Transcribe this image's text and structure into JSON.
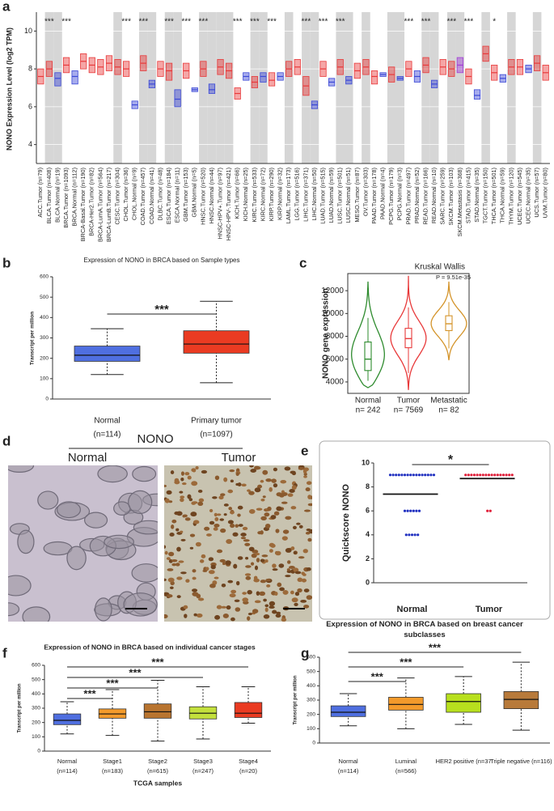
{
  "panel_labels": [
    "a",
    "b",
    "c",
    "d",
    "e",
    "f",
    "g"
  ],
  "chart_data": [
    {
      "type": "box",
      "ylabel": "NONO Expression Level (log2 TPM)",
      "categories": [
        "ACC.Tumor (n=79)",
        "BLCA.Tumor (n=408)",
        "BLCA.Normal (n=19)",
        "BRCA.Tumor (n=1093)",
        "BRCA.Normal (n=112)",
        "BRCA-Basal.Tumor (n=190)",
        "BRCA-Her2.Tumor (n=82)",
        "BRCA-LumA.Tumor (n=564)",
        "BRCA-LumB.Tumor (n=217)",
        "CESC.Tumor (n=304)",
        "CHOL.Tumor (n=36)",
        "CHOL.Normal (n=9)",
        "COAD.Tumor (n=457)",
        "COAD.Normal (n=41)",
        "DLBC.Tumor (n=48)",
        "ESCA.Tumor (n=184)",
        "ESCA.Normal (n=11)",
        "GBM.Tumor (n=153)",
        "GBM.Normal (n=5)",
        "HNSC.Tumor (n=520)",
        "HNSC.Normal (n=44)",
        "HNSC-HPV+.Tumor (n=97)",
        "HNSC-HPV-.Tumor (n=421)",
        "KICH.Tumor (n=66)",
        "KICH.Normal (n=25)",
        "KIRC.Tumor (n=533)",
        "KIRC.Normal (n=72)",
        "KIRP.Tumor (n=290)",
        "KIRP.Normal (n=32)",
        "LAML.Tumor (n=173)",
        "LGG.Tumor (n=516)",
        "LIHC.Tumor (n=371)",
        "LIHC.Normal (n=50)",
        "LUAD.Tumor (n=515)",
        "LUAD.Normal (n=59)",
        "LUSC.Tumor (n=501)",
        "LUSC.Normal (n=51)",
        "MESO.Tumor (n=87)",
        "OV.Tumor (n=303)",
        "PAAD.Tumor (n=178)",
        "PAAD.Normal (n=4)",
        "PCPG.Tumor (n=179)",
        "PCPG.Normal (n=3)",
        "PRAD.Tumor (n=497)",
        "PRAD.Normal (n=52)",
        "READ.Tumor (n=166)",
        "READ.Normal (n=10)",
        "SARC.Tumor (n=259)",
        "SKCM.Tumor (n=103)",
        "SKCM.Metastasis (n=368)",
        "STAD.Tumor (n=415)",
        "STAD.Normal (n=35)",
        "TGCT.Tumor (n=150)",
        "THCA.Tumor (n=501)",
        "THCA.Normal (n=59)",
        "THYM.Tumor (n=120)",
        "UCEC.Tumor (n=545)",
        "UCEC.Normal (n=35)",
        "UCS.Tumor (n=57)",
        "UVM.Tumor (n=80)"
      ],
      "median": [
        7.6,
        8.0,
        7.5,
        8.2,
        7.6,
        8.4,
        8.2,
        8.1,
        8.3,
        8.1,
        8.0,
        6.1,
        8.3,
        7.2,
        8.0,
        7.9,
        6.4,
        7.9,
        6.9,
        8.0,
        6.9,
        8.1,
        7.9,
        6.7,
        7.6,
        7.3,
        7.6,
        7.4,
        7.6,
        8.0,
        8.1,
        7.1,
        6.1,
        8.0,
        7.3,
        8.1,
        7.4,
        7.9,
        8.1,
        7.6,
        7.7,
        7.7,
        7.5,
        8.0,
        7.6,
        8.2,
        7.2,
        8.1,
        8.0,
        8.2,
        7.6,
        6.6,
        8.8,
        7.8,
        7.5,
        8.1,
        8.1,
        8.0,
        8.3,
        7.8
      ],
      "q1": [
        7.2,
        7.6,
        7.1,
        7.8,
        7.2,
        8.0,
        7.8,
        7.7,
        7.9,
        7.7,
        7.6,
        5.9,
        7.9,
        7.0,
        7.6,
        7.4,
        6.0,
        7.5,
        6.8,
        7.6,
        6.7,
        7.7,
        7.5,
        6.4,
        7.4,
        7.0,
        7.3,
        7.1,
        7.4,
        7.6,
        7.7,
        6.6,
        5.9,
        7.6,
        7.1,
        7.7,
        7.2,
        7.5,
        7.7,
        7.2,
        7.6,
        7.3,
        7.4,
        7.6,
        7.3,
        7.8,
        7.0,
        7.7,
        7.6,
        7.8,
        7.2,
        6.4,
        8.4,
        7.4,
        7.3,
        7.7,
        7.7,
        7.8,
        7.9,
        7.4
      ],
      "q3": [
        8.0,
        8.4,
        7.8,
        8.6,
        7.9,
        8.8,
        8.6,
        8.5,
        8.7,
        8.5,
        8.4,
        6.3,
        8.7,
        7.4,
        8.4,
        8.3,
        6.9,
        8.3,
        7.0,
        8.4,
        7.2,
        8.5,
        8.3,
        7.0,
        7.8,
        7.6,
        7.8,
        7.8,
        7.8,
        8.4,
        8.5,
        7.6,
        6.3,
        8.4,
        7.5,
        8.5,
        7.6,
        8.3,
        8.5,
        7.9,
        7.8,
        8.1,
        7.6,
        8.4,
        7.9,
        8.6,
        7.4,
        8.5,
        8.4,
        8.6,
        8.0,
        6.9,
        9.2,
        8.2,
        7.7,
        8.5,
        8.5,
        8.2,
        8.7,
        8.2
      ],
      "colors": [
        "#e8393a",
        "#e8393a",
        "#3b48d6",
        "#e8393a",
        "#3b48d6",
        "#e8393a",
        "#e8393a",
        "#e8393a",
        "#e8393a",
        "#e8393a",
        "#e8393a",
        "#3b48d6",
        "#e8393a",
        "#3b48d6",
        "#e8393a",
        "#e8393a",
        "#3b48d6",
        "#e8393a",
        "#3b48d6",
        "#e8393a",
        "#3b48d6",
        "#e8393a",
        "#e8393a",
        "#e8393a",
        "#3b48d6",
        "#e8393a",
        "#3b48d6",
        "#e8393a",
        "#3b48d6",
        "#e8393a",
        "#e8393a",
        "#e8393a",
        "#3b48d6",
        "#e8393a",
        "#3b48d6",
        "#e8393a",
        "#3b48d6",
        "#e8393a",
        "#e8393a",
        "#e8393a",
        "#3b48d6",
        "#e8393a",
        "#3b48d6",
        "#e8393a",
        "#3b48d6",
        "#e8393a",
        "#3b48d6",
        "#e8393a",
        "#e8393a",
        "#a23fd6",
        "#e8393a",
        "#3b48d6",
        "#e8393a",
        "#e8393a",
        "#3b48d6",
        "#e8393a",
        "#e8393a",
        "#3b48d6",
        "#e8393a",
        "#e8393a"
      ],
      "significance": [
        null,
        "***",
        null,
        "***",
        null,
        null,
        null,
        null,
        null,
        null,
        "***",
        null,
        "***",
        null,
        null,
        "***",
        null,
        "***",
        null,
        "***",
        null,
        null,
        null,
        "***",
        null,
        "***",
        null,
        "***",
        null,
        null,
        null,
        "***",
        null,
        "***",
        null,
        "***",
        null,
        null,
        null,
        null,
        null,
        null,
        null,
        "***",
        null,
        "***",
        null,
        null,
        "***",
        null,
        "***",
        null,
        null,
        "*",
        null,
        null,
        null,
        null,
        null,
        null
      ],
      "ylim": [
        3,
        11
      ],
      "yticks": [
        4,
        6,
        8,
        10
      ],
      "grid": true
    },
    {
      "type": "box",
      "title": "Expression of NONO in BRCA based on Sample types",
      "ylabel": "Transcript per million",
      "categories": [
        "Normal",
        "Primary tumor"
      ],
      "n_labels": [
        "(n=114)",
        "(n=1097)"
      ],
      "min": [
        120,
        80
      ],
      "q1": [
        185,
        225
      ],
      "median": [
        215,
        270
      ],
      "q3": [
        260,
        335
      ],
      "max": [
        345,
        480
      ],
      "colors": [
        "#4f6fe0",
        "#ea3b22"
      ],
      "significance": [
        null,
        "***"
      ],
      "ylim": [
        0,
        600
      ],
      "yticks": [
        0,
        100,
        200,
        300,
        400,
        500,
        600
      ]
    },
    {
      "type": "violin",
      "ylabel": "NONO gene expression",
      "categories": [
        "Normal",
        "Tumor",
        "Metastatic"
      ],
      "n_labels": [
        "n= 242",
        "n= 7569",
        "n= 82"
      ],
      "min": [
        3500,
        3300,
        5900
      ],
      "q1": [
        5000,
        7000,
        8500
      ],
      "median": [
        6000,
        7800,
        9100
      ],
      "q3": [
        7500,
        8700,
        9800
      ],
      "max": [
        12800,
        13300,
        12800
      ],
      "colors": [
        "#2e8b2e",
        "#e8393a",
        "#d4942a"
      ],
      "test": "Kruskal Wallis",
      "p_value": "P = 9.51e-35",
      "ylim": [
        3000,
        13500
      ],
      "yticks": [
        4000,
        6000,
        8000,
        10000,
        12000
      ]
    },
    {
      "type": "dot",
      "ylabel": "Quickscore NONO",
      "categories": [
        "Normal",
        "Tumor"
      ],
      "values": [
        [
          9,
          9,
          9,
          9,
          9,
          9,
          9,
          9,
          9,
          9,
          9,
          9,
          9,
          9,
          9,
          9,
          6,
          6,
          6,
          6,
          6,
          6,
          4,
          4,
          4,
          4,
          4
        ],
        [
          9,
          9,
          9,
          9,
          9,
          9,
          9,
          9,
          9,
          9,
          9,
          9,
          9,
          9,
          9,
          9,
          9,
          6,
          6
        ]
      ],
      "means": [
        7.4,
        8.7
      ],
      "colors": [
        "#2030c0",
        "#e0203a"
      ],
      "significance": [
        null,
        "*"
      ],
      "ylim": [
        0,
        10
      ],
      "yticks": [
        0,
        2,
        4,
        6,
        8,
        10
      ]
    },
    {
      "type": "box",
      "title": "Expression of NONO in BRCA based on individual cancer stages",
      "ylabel": "Transcript per million",
      "xlabel": "TCGA samples",
      "categories": [
        "Normal",
        "Stage1",
        "Stage2",
        "Stage3",
        "Stage4"
      ],
      "n_labels": [
        "(n=114)",
        "(n=183)",
        "(n=615)",
        "(n=247)",
        "(n=20)"
      ],
      "min": [
        120,
        110,
        70,
        85,
        195
      ],
      "q1": [
        185,
        230,
        230,
        225,
        235
      ],
      "median": [
        215,
        260,
        275,
        265,
        265
      ],
      "q3": [
        260,
        295,
        330,
        310,
        340
      ],
      "max": [
        345,
        430,
        495,
        450,
        450
      ],
      "colors": [
        "#4f6fe0",
        "#f39a2b",
        "#b8742f",
        "#c3e03c",
        "#ea3b22"
      ],
      "significance": [
        null,
        "***",
        "***",
        "***",
        "***"
      ],
      "ylim": [
        0,
        600
      ],
      "yticks": [
        0,
        100,
        200,
        300,
        400,
        500,
        600
      ]
    },
    {
      "type": "box",
      "title": "Expression of NONO in BRCA based on breast cancer subclasses",
      "ylabel": "Transcript per million",
      "categories": [
        "Normal",
        "Luminal",
        "HER2 positive (n=37",
        "Triple negative (n=116)"
      ],
      "n_labels": [
        "(n=114)",
        "(n=566)",
        null,
        null
      ],
      "min": [
        120,
        100,
        130,
        90
      ],
      "q1": [
        185,
        230,
        215,
        240
      ],
      "median": [
        215,
        270,
        290,
        305
      ],
      "q3": [
        260,
        320,
        345,
        360
      ],
      "max": [
        345,
        455,
        465,
        565
      ],
      "colors": [
        "#4f6fe0",
        "#f39a2b",
        "#b8e01e",
        "#b87a3a"
      ],
      "significance": [
        null,
        "***",
        "***",
        "***"
      ],
      "ylim": [
        0,
        600
      ],
      "yticks": [
        0,
        100,
        200,
        300,
        400,
        500,
        600
      ]
    }
  ],
  "histology": {
    "title": "NONO",
    "labels": [
      "Normal",
      "Tumor"
    ]
  }
}
